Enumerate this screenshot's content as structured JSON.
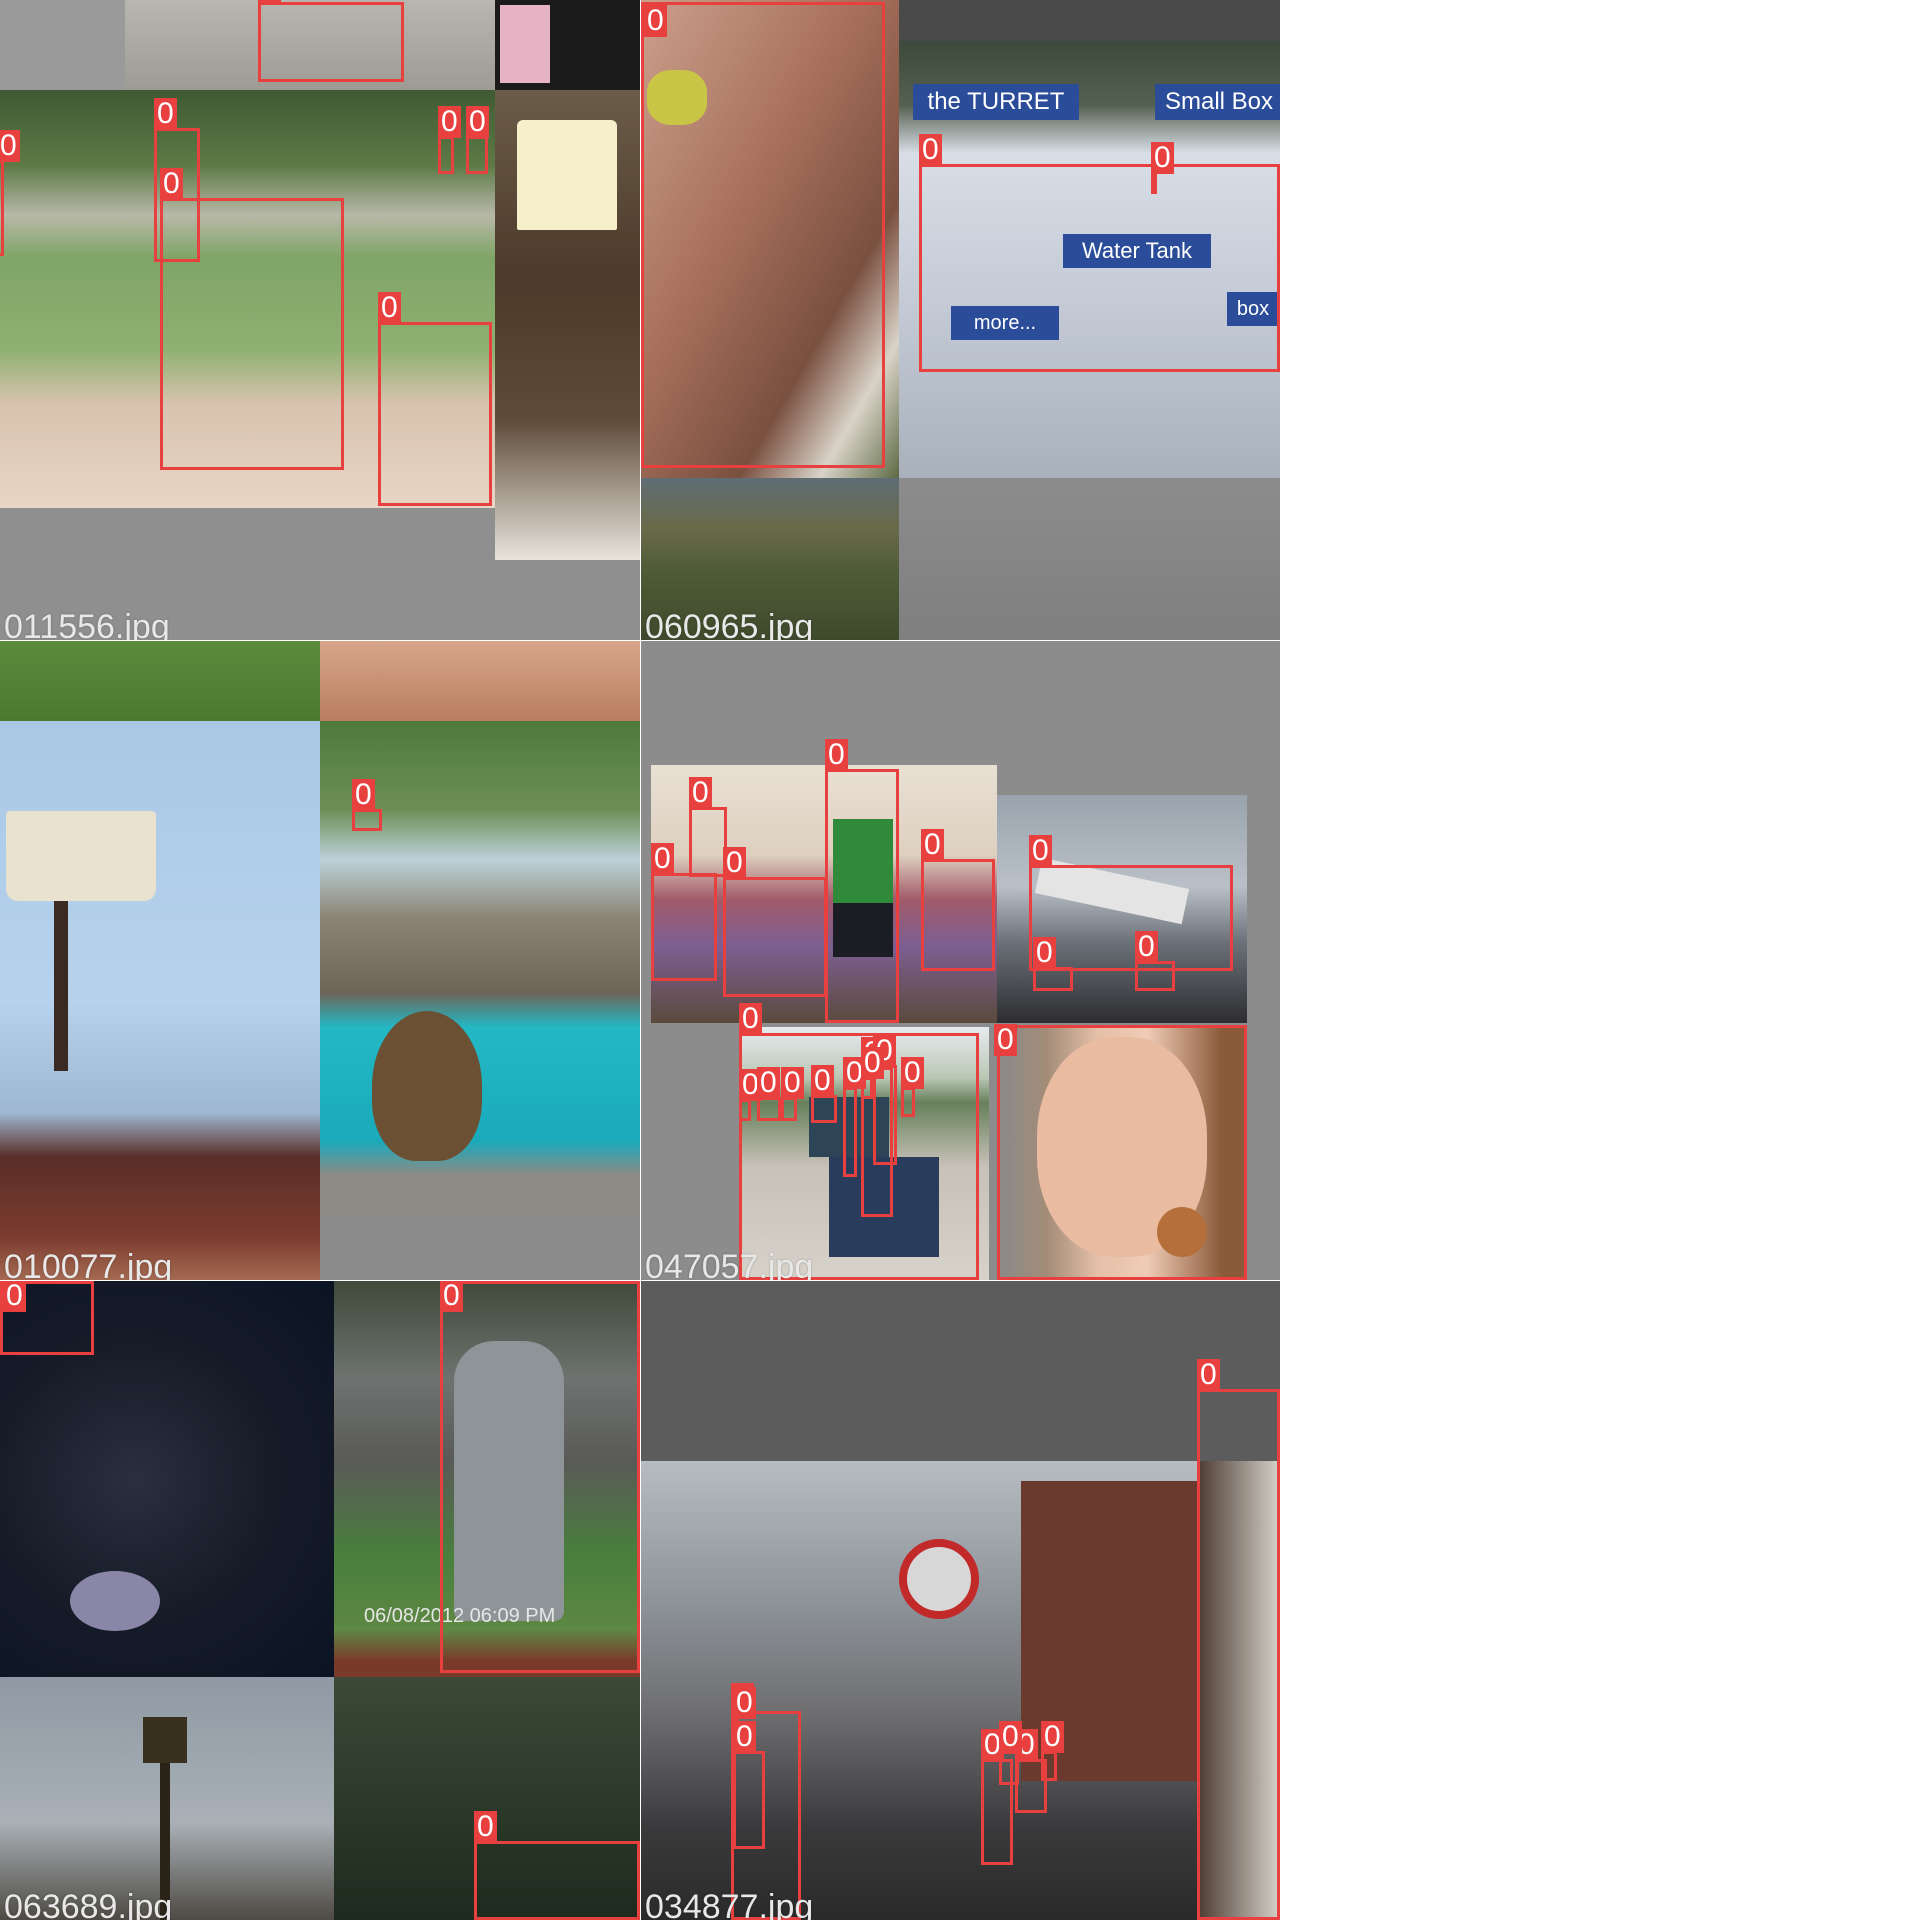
{
  "box_color": "#e8403e",
  "tiles": [
    {
      "id": "t1",
      "filename": "011556.jpg"
    },
    {
      "id": "t2",
      "filename": "060965.jpg"
    },
    {
      "id": "t3",
      "filename": "010077.jpg"
    },
    {
      "id": "t4",
      "filename": "047057.jpg"
    },
    {
      "id": "t5",
      "filename": "063689.jpg"
    },
    {
      "id": "t6",
      "filename": "034877.jpg"
    }
  ],
  "detection_label": "0",
  "scene_text": {
    "sign_turret": "the TURRET",
    "sign_smallbox": "Small Box",
    "sign_watertank": "Water Tank",
    "sign_more": "more...",
    "sign_box": "box",
    "timestamp": "06/08/2012 06:09 PM"
  }
}
